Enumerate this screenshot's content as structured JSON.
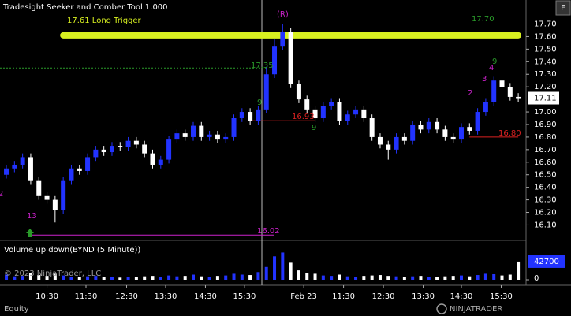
{
  "header": {
    "title": "Tradesight Seeker and Comber Tool 1.000",
    "button": "F",
    "copyright": "© 2023 NinjaTrader, LLC",
    "tab": "Equity",
    "logo": "NINJATRADER"
  },
  "chart_data": {
    "type": "candlestick",
    "x": [
      0,
      1,
      2,
      3,
      4,
      5,
      6,
      7,
      8,
      9,
      10,
      11,
      12,
      13,
      14,
      15,
      16,
      17,
      18,
      19,
      20,
      21,
      22,
      23,
      24,
      25,
      26,
      27,
      28,
      29,
      30,
      31,
      32,
      33,
      34,
      35,
      36,
      37,
      38,
      39,
      40,
      41,
      42,
      43,
      44,
      45,
      46,
      47,
      48,
      49,
      50,
      51,
      52,
      53,
      54,
      55,
      56,
      57,
      58,
      59,
      60,
      61,
      62,
      63
    ],
    "open": [
      16.5,
      16.55,
      16.58,
      16.64,
      16.45,
      16.33,
      16.3,
      16.22,
      16.45,
      16.55,
      16.53,
      16.64,
      16.7,
      16.68,
      16.73,
      16.72,
      16.77,
      16.74,
      16.67,
      16.58,
      16.62,
      16.78,
      16.83,
      16.8,
      16.89,
      16.8,
      16.82,
      16.78,
      16.8,
      16.95,
      17.0,
      16.93,
      17.02,
      17.3,
      17.52,
      17.64,
      17.22,
      17.1,
      17.02,
      16.95,
      17.05,
      17.08,
      16.93,
      16.98,
      17.02,
      16.95,
      16.8,
      16.74,
      16.7,
      16.8,
      16.77,
      16.9,
      16.86,
      16.92,
      16.86,
      16.8,
      16.78,
      16.88,
      16.85,
      17.0,
      17.08,
      17.25,
      17.2,
      17.12
    ],
    "high": [
      16.58,
      16.61,
      16.67,
      16.67,
      16.48,
      16.36,
      16.33,
      16.48,
      16.58,
      16.58,
      16.67,
      16.73,
      16.73,
      16.76,
      16.76,
      16.8,
      16.8,
      16.77,
      16.7,
      16.65,
      16.81,
      16.86,
      16.86,
      16.92,
      16.92,
      16.85,
      16.85,
      16.83,
      16.98,
      17.03,
      17.03,
      17.05,
      17.36,
      17.58,
      17.7,
      17.67,
      17.25,
      17.13,
      17.05,
      17.08,
      17.11,
      17.11,
      17.01,
      17.05,
      17.05,
      16.98,
      16.83,
      16.77,
      16.83,
      16.83,
      16.93,
      16.93,
      16.95,
      16.95,
      16.89,
      16.83,
      16.91,
      16.91,
      17.03,
      17.11,
      17.28,
      17.28,
      17.23,
      17.15
    ],
    "low": [
      16.47,
      16.52,
      16.55,
      16.42,
      16.3,
      16.27,
      16.12,
      16.19,
      16.42,
      16.5,
      16.5,
      16.61,
      16.65,
      16.65,
      16.69,
      16.69,
      16.71,
      16.64,
      16.55,
      16.55,
      16.59,
      16.75,
      16.77,
      16.77,
      16.77,
      16.77,
      16.75,
      16.75,
      16.77,
      16.92,
      16.9,
      16.9,
      16.99,
      17.27,
      17.49,
      17.19,
      17.07,
      16.99,
      16.92,
      16.92,
      17.02,
      16.9,
      16.9,
      16.95,
      16.92,
      16.77,
      16.71,
      16.62,
      16.67,
      16.74,
      16.74,
      16.83,
      16.83,
      16.83,
      16.77,
      16.75,
      16.75,
      16.82,
      16.82,
      16.97,
      17.05,
      17.17,
      17.09,
      17.08
    ],
    "close": [
      16.55,
      16.58,
      16.64,
      16.45,
      16.33,
      16.3,
      16.22,
      16.45,
      16.55,
      16.53,
      16.64,
      16.7,
      16.68,
      16.73,
      16.72,
      16.77,
      16.74,
      16.67,
      16.58,
      16.62,
      16.78,
      16.83,
      16.8,
      16.89,
      16.8,
      16.82,
      16.78,
      16.8,
      16.95,
      17.0,
      16.93,
      17.02,
      17.3,
      17.52,
      17.64,
      17.22,
      17.1,
      17.02,
      16.95,
      17.05,
      17.08,
      16.93,
      16.98,
      17.02,
      16.95,
      16.8,
      16.74,
      16.7,
      16.8,
      16.77,
      16.9,
      16.86,
      16.92,
      16.86,
      16.8,
      16.78,
      16.88,
      16.85,
      17.0,
      17.08,
      17.25,
      17.2,
      17.12,
      17.11
    ],
    "up_color": "#2233ff",
    "down_color": "#ffffff",
    "xlim": [
      -0.78,
      63.96
    ],
    "xticks": [
      {
        "value": 5,
        "label": "10:30"
      },
      {
        "value": 9.8,
        "label": "11:30"
      },
      {
        "value": 14.8,
        "label": "12:30"
      },
      {
        "value": 19.6,
        "label": "13:30"
      },
      {
        "value": 24.5,
        "label": "14:30"
      },
      {
        "value": 29.3,
        "label": "15:30"
      },
      {
        "value": 36.6,
        "label": "Feb 23"
      },
      {
        "value": 41.5,
        "label": "11:30"
      },
      {
        "value": 46.4,
        "label": "12:30"
      },
      {
        "value": 51.3,
        "label": "13:30"
      },
      {
        "value": 56,
        "label": "14:30"
      },
      {
        "value": 60.9,
        "label": "15:30"
      }
    ],
    "ylim": [
      15.99,
      17.86
    ],
    "yticks": [
      {
        "value": 16.1,
        "label": "16.10"
      },
      {
        "value": 16.2,
        "label": "16.20"
      },
      {
        "value": 16.3,
        "label": "16.30"
      },
      {
        "value": 16.4,
        "label": "16.40"
      },
      {
        "value": 16.5,
        "label": "16.50"
      },
      {
        "value": 16.6,
        "label": "16.60"
      },
      {
        "value": 16.7,
        "label": "16.70"
      },
      {
        "value": 16.8,
        "label": "16.80"
      },
      {
        "value": 16.9,
        "label": "16.90"
      },
      {
        "value": 17,
        "label": "17.00"
      },
      {
        "value": 17.2,
        "label": "17.20"
      },
      {
        "value": 17.3,
        "label": "17.30"
      },
      {
        "value": 17.4,
        "label": "17.40"
      },
      {
        "value": 17.5,
        "label": "17.50"
      },
      {
        "value": 17.6,
        "label": "17.60"
      },
      {
        "value": 17.7,
        "label": "17.70"
      }
    ],
    "last_price": 17.11,
    "levels": [
      {
        "label": "17.61 Long Trigger",
        "value": 17.61,
        "color": "#d8f020",
        "from": 7,
        "to": 63
      },
      {
        "label": "17.70",
        "value": 17.7,
        "color": "#2a9a2a",
        "from": 33,
        "to": 63
      },
      {
        "label": "16.93",
        "value": 16.93,
        "color": "#dd2222",
        "from": 30,
        "to": 38
      },
      {
        "label": "16.80",
        "value": 16.8,
        "color": "#dd2222",
        "from": 57,
        "to": 63
      },
      {
        "label": "16.02",
        "value": 16.02,
        "color": "#cc22cc",
        "from": 3,
        "to": 33
      },
      {
        "label": "17.35",
        "value": 17.35,
        "color": "#2a9a2a",
        "from": -0.78,
        "to": 32
      }
    ],
    "annotations": [
      "(R)",
      "13",
      "2",
      "9",
      "9",
      "4",
      "3",
      "2",
      "9"
    ],
    "volume": {
      "title": "Volume up down(BYND (5 Minute))",
      "values": [
        12000,
        8000,
        9000,
        15000,
        11000,
        9000,
        14000,
        10000,
        7000,
        6000,
        8000,
        9000,
        7000,
        6000,
        5000,
        7000,
        6000,
        8000,
        9000,
        7000,
        10000,
        8000,
        9000,
        12000,
        8000,
        7000,
        9000,
        10000,
        14000,
        12000,
        11000,
        18000,
        30000,
        55000,
        64000,
        40000,
        22000,
        16000,
        14000,
        10000,
        9000,
        12000,
        8000,
        7000,
        9000,
        10000,
        11000,
        9000,
        8000,
        7000,
        8000,
        9000,
        7000,
        6000,
        8000,
        9000,
        10000,
        8000,
        11000,
        14000,
        13000,
        10000,
        12000,
        42700
      ],
      "ylim": [
        0,
        87000
      ],
      "yticks": [
        0
      ],
      "last": 42700
    }
  }
}
